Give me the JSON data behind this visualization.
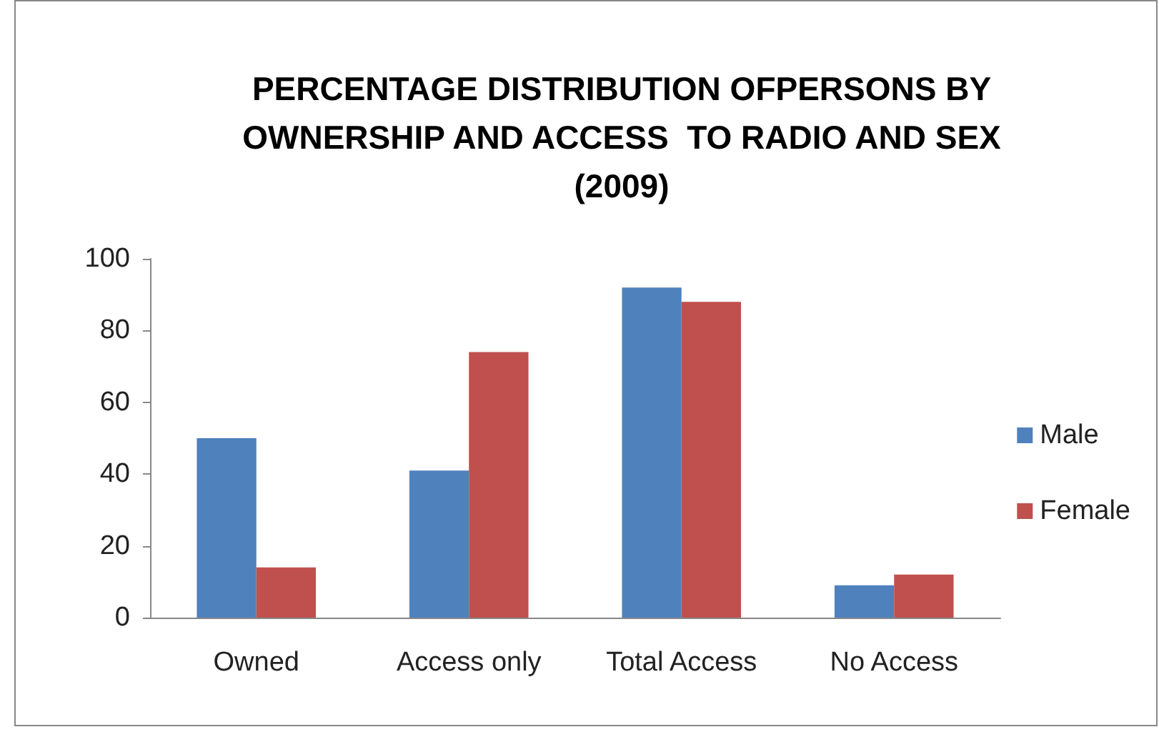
{
  "chart_data": {
    "type": "bar",
    "title": "PERCENTAGE DISTRIBUTION OFPERSONS BY\nOWNERSHIP AND ACCESS  TO RADIO AND SEX\n(2009)",
    "categories": [
      "Owned",
      "Access only",
      "Total Access",
      "No Access"
    ],
    "series": [
      {
        "name": "Male",
        "color": "#4f81bd",
        "values": [
          50,
          41,
          92,
          9
        ]
      },
      {
        "name": "Female",
        "color": "#c0504d",
        "values": [
          14,
          74,
          88,
          12
        ]
      }
    ],
    "ylim": [
      0,
      100
    ],
    "yticks": [
      0,
      20,
      40,
      60,
      80,
      100
    ],
    "grid": false,
    "legend": "right"
  }
}
